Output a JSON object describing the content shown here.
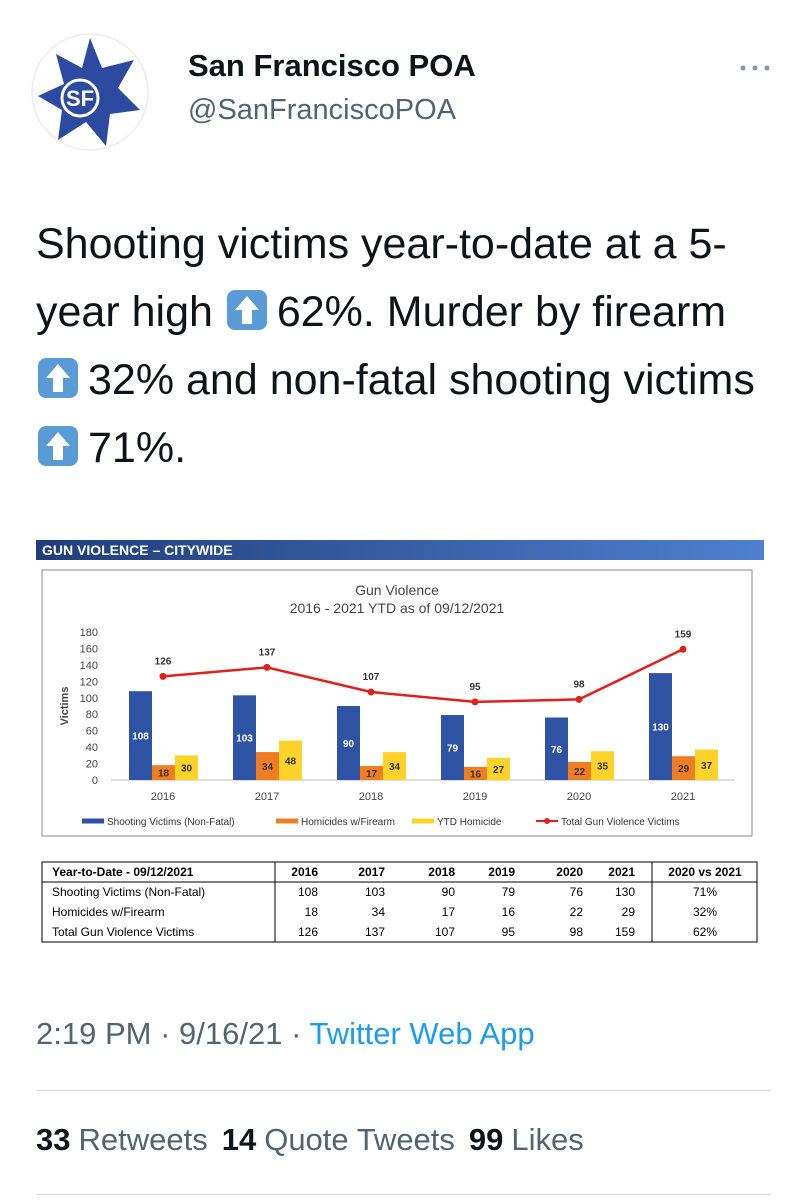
{
  "tweet": {
    "name": "San Francisco POA",
    "handle": "@SanFranciscoPOA",
    "logo_text": "SF",
    "text": [
      "Shooting victims year-to-date at a 5-year high ",
      "62%. Murder by firearm ",
      "32% and non-fatal shooting victims ",
      "71%."
    ]
  },
  "banner": "GUN VIOLENCE – CITYWIDE",
  "chart_data": {
    "type": "bar",
    "title": "Gun Violence",
    "subtitle": "2016 - 2021 YTD as of 09/12/2021",
    "y_label": "Victims",
    "categories": [
      "2016",
      "2017",
      "2018",
      "2019",
      "2020",
      "2021"
    ],
    "series": [
      {
        "name": "Shooting Victims (Non-Fatal)",
        "color": "#2e52a4",
        "values": [
          108,
          103,
          90,
          79,
          76,
          130
        ]
      },
      {
        "name": "Homicides w/Firearm",
        "color": "#ef7d22",
        "values": [
          18,
          34,
          17,
          16,
          22,
          29
        ]
      },
      {
        "name": "YTD Homicide",
        "color": "#fdd32a",
        "values": [
          30,
          48,
          34,
          27,
          35,
          37
        ]
      },
      {
        "name": "Total Gun Violence Victims",
        "color": "#e0201b",
        "type": "line",
        "values": [
          126,
          137,
          107,
          95,
          98,
          159
        ]
      }
    ],
    "ylim": [
      0,
      180
    ],
    "yticks": [
      0,
      20,
      40,
      60,
      80,
      100,
      120,
      140,
      160,
      180
    ],
    "legend": "bottom"
  },
  "table": {
    "header": [
      "Year-to-Date - 09/12/2021",
      "2016",
      "2017",
      "2018",
      "2019",
      "2020",
      "2021",
      "2020 vs 2021"
    ],
    "rows": [
      [
        "Shooting Victims (Non-Fatal)",
        "108",
        "103",
        "90",
        "79",
        "76",
        "130",
        "71%"
      ],
      [
        "Homicides w/Firearm",
        "18",
        "34",
        "17",
        "16",
        "22",
        "29",
        "32%"
      ],
      [
        "Total Gun Violence Victims",
        "126",
        "137",
        "107",
        "95",
        "98",
        "159",
        "62%"
      ]
    ]
  },
  "footer": {
    "time": "2:19 PM",
    "date": "9/16/21",
    "source": "Twitter Web App",
    "separator": "·",
    "stats": [
      {
        "count": "33",
        "label": "Retweets"
      },
      {
        "count": "14",
        "label": "Quote Tweets"
      },
      {
        "count": "99",
        "label": "Likes"
      }
    ]
  }
}
